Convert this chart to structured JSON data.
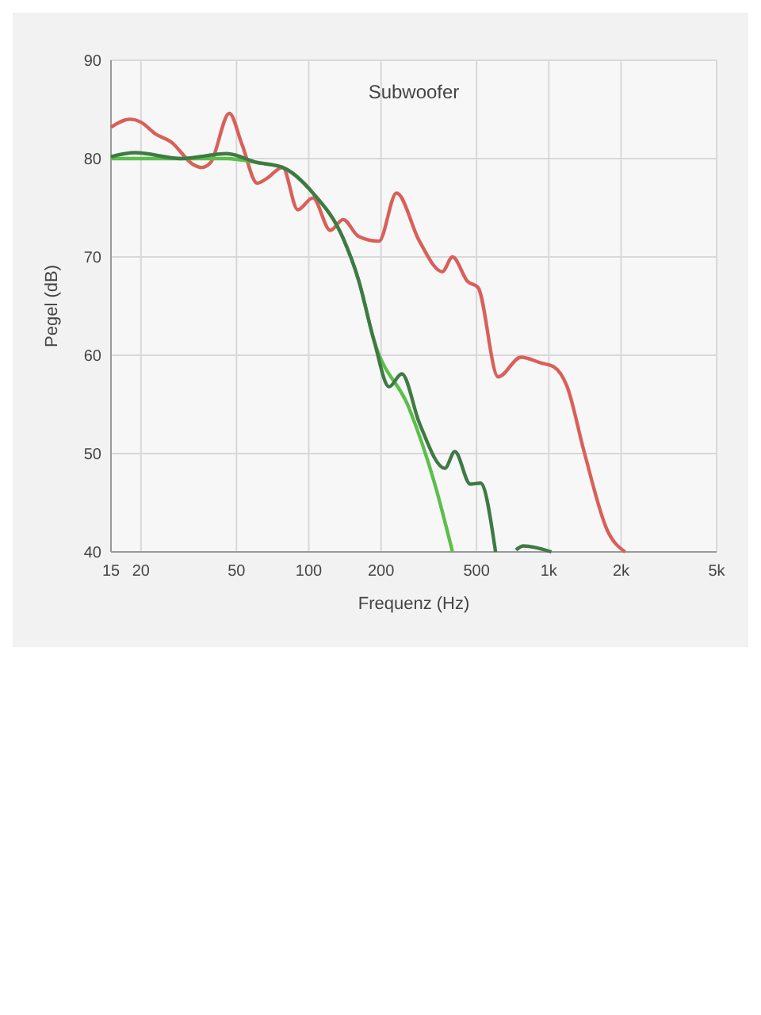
{
  "chart_data": {
    "type": "line",
    "title": "Subwoofer",
    "xlabel": "Frequenz (Hz)",
    "ylabel": "Pegel (dB)",
    "log": "x",
    "grid": true,
    "xlim": [
      15,
      5000
    ],
    "ylim": [
      40,
      90
    ],
    "xticks": [
      15,
      20,
      50,
      100,
      200,
      500,
      {
        "value": 1000,
        "label": "1k"
      },
      {
        "value": 2000,
        "label": "2k"
      },
      {
        "value": 5000,
        "label": "5k"
      }
    ],
    "yticks": [
      40,
      50,
      60,
      70,
      80,
      90
    ],
    "series": [
      {
        "color": "#d9605a",
        "x": [
          15,
          18,
          20,
          23,
          26.7,
          33,
          35.7,
          39,
          46.7,
          52.6,
          61,
          67,
          77.8,
          90,
          104,
          123,
          139,
          161,
          196,
          232,
          289,
          360,
          397,
          459,
          507,
          615,
          766,
          931,
          1052,
          1188,
          1406,
          1752,
          2079
        ],
        "values": [
          83.2,
          84,
          83.7,
          82.5,
          81.7,
          79.4,
          79.1,
          79.6,
          84.6,
          81.5,
          77.5,
          78,
          79.1,
          74.8,
          76,
          72.7,
          73.8,
          72.1,
          71.6,
          76.5,
          71.6,
          68.5,
          70,
          67.5,
          66.9,
          57.8,
          59.8,
          59.2,
          58.8,
          56.9,
          50.1,
          42.2,
          40
        ]
      },
      {
        "color": "#5bbf4a",
        "x": [
          15,
          29.4,
          45.5,
          61,
          77.8,
          104,
          139,
          161,
          187,
          262,
          335,
          397
        ],
        "values": [
          80,
          80,
          80,
          79.6,
          79.1,
          76.5,
          71.9,
          67.7,
          61.5,
          54.6,
          46.9,
          40
        ]
      },
      {
        "color": "#3f7a45",
        "x": [
          15,
          18.9,
          29.4,
          45.5,
          61,
          77.8,
          104,
          139,
          161,
          187,
          216,
          244,
          289,
          369,
          406,
          471,
          519,
          600,
          700,
          730,
          785,
          1025
        ],
        "values": [
          80.2,
          80.6,
          80,
          80.5,
          79.6,
          79.1,
          76.5,
          71.9,
          67.7,
          61.5,
          56.8,
          58.1,
          53.1,
          48.5,
          50.2,
          46.9,
          47,
          40,
          null,
          40.2,
          40.6,
          40
        ]
      }
    ]
  }
}
